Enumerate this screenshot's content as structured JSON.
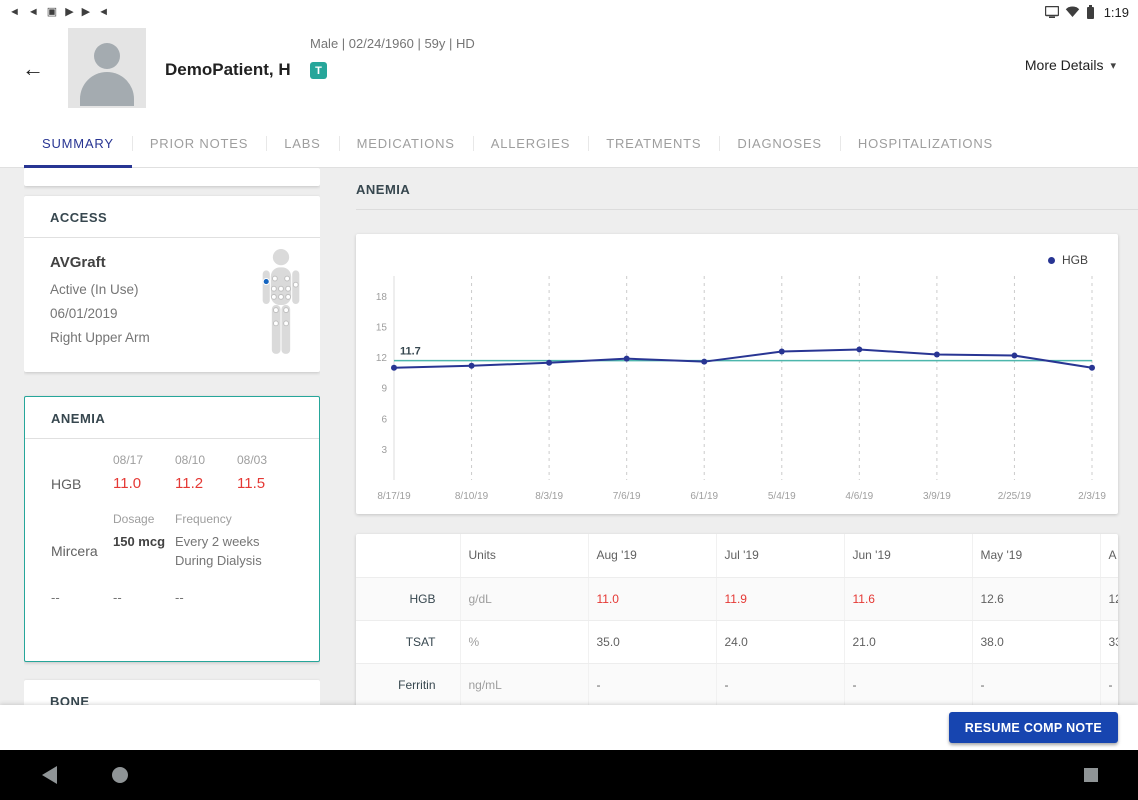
{
  "colors": {
    "accent_blue": "#283593",
    "chart_line": "#283593",
    "reference_teal": "#4db6ac",
    "alert_red": "#e53935",
    "selected_card_border": "#26a69a",
    "badge_teal": "#26a69a",
    "button_blue": "#1745b0",
    "background": "#eeeeee"
  },
  "status_bar": {
    "time": "1:19",
    "left_icons": [
      {
        "name": "media-route-icon",
        "glyph": "◄"
      },
      {
        "name": "media-route-icon",
        "glyph": "◄"
      },
      {
        "name": "screenshot-icon",
        "glyph": "▣"
      },
      {
        "name": "media-play-icon",
        "glyph": "▶"
      },
      {
        "name": "media-play-icon",
        "glyph": "▶"
      },
      {
        "name": "media-route-icon",
        "glyph": "◄"
      }
    ]
  },
  "header": {
    "back_glyph": "←",
    "name": "DemoPatient, H",
    "demographics": "Male | 02/24/1960 | 59y | HD",
    "badge": "T",
    "more_details": "More Details",
    "caret_glyph": "▾"
  },
  "tabs": [
    {
      "label": "SUMMARY",
      "active": true
    },
    {
      "label": "PRIOR NOTES",
      "active": false
    },
    {
      "label": "LABS",
      "active": false
    },
    {
      "label": "MEDICATIONS",
      "active": false
    },
    {
      "label": "ALLERGIES",
      "active": false
    },
    {
      "label": "TREATMENTS",
      "active": false
    },
    {
      "label": "DIAGNOSES",
      "active": false
    },
    {
      "label": "HOSPITALIZATIONS",
      "active": false
    }
  ],
  "sidebar": {
    "access": {
      "title": "ACCESS",
      "type": "AVGraft",
      "status": "Active (In Use)",
      "date": "06/01/2019",
      "location": "Right Upper Arm"
    },
    "anemia": {
      "title": "ANEMIA",
      "date_headers": [
        "08/17",
        "08/10",
        "08/03"
      ],
      "hgb_label": "HGB",
      "hgb_values": [
        "11.0",
        "11.2",
        "11.5"
      ],
      "dosage_label": "Dosage",
      "frequency_label": "Frequency",
      "med_name": "Mircera",
      "med_dosage": "150 mcg",
      "med_frequency": "Every 2 weeks During Dialysis",
      "empty_row": [
        "--",
        "--",
        "--"
      ]
    },
    "bone": {
      "title": "BONE"
    }
  },
  "main": {
    "section_title": "ANEMIA"
  },
  "chart_data": {
    "type": "line",
    "title": "",
    "x": [
      "8/17/19",
      "8/10/19",
      "8/3/19",
      "7/6/19",
      "6/1/19",
      "5/4/19",
      "4/6/19",
      "3/9/19",
      "2/25/19",
      "2/3/19"
    ],
    "series": [
      {
        "name": "HGB",
        "color": "#283593",
        "values": [
          11.0,
          11.2,
          11.5,
          11.9,
          11.6,
          12.6,
          12.8,
          12.3,
          12.2,
          11.0
        ]
      }
    ],
    "yticks": [
      3,
      6,
      9,
      12,
      15,
      18
    ],
    "ylim": [
      0,
      20
    ],
    "reference_line": {
      "value": 11.7,
      "label": "11.7",
      "color": "#4db6ac"
    },
    "legend": [
      "HGB"
    ],
    "legend_position": "top-right",
    "grid": "vertical-dashed"
  },
  "labs_table": {
    "columns": [
      "",
      "Units",
      "Aug '19",
      "Jul '19",
      "Jun '19",
      "May '19",
      "A"
    ],
    "rows": [
      {
        "label": "HGB",
        "unit": "g/dL",
        "values": [
          {
            "v": "11.0",
            "alert": true
          },
          {
            "v": "11.9",
            "alert": true
          },
          {
            "v": "11.6",
            "alert": true
          },
          {
            "v": "12.6",
            "alert": false
          },
          {
            "v": "12",
            "alert": false
          }
        ]
      },
      {
        "label": "TSAT",
        "unit": "%",
        "values": [
          {
            "v": "35.0",
            "alert": false
          },
          {
            "v": "24.0",
            "alert": false
          },
          {
            "v": "21.0",
            "alert": false
          },
          {
            "v": "38.0",
            "alert": false
          },
          {
            "v": "33",
            "alert": false
          }
        ]
      },
      {
        "label": "Ferritin",
        "unit": "ng/mL",
        "values": [
          {
            "v": "-",
            "alert": false
          },
          {
            "v": "-",
            "alert": false
          },
          {
            "v": "-",
            "alert": false
          },
          {
            "v": "-",
            "alert": false
          },
          {
            "v": "-",
            "alert": false
          }
        ]
      }
    ]
  },
  "footer": {
    "button_label": "RESUME COMP NOTE"
  },
  "nav_bar": {
    "icons": [
      "back-icon",
      "home-icon",
      "recents-icon"
    ]
  }
}
